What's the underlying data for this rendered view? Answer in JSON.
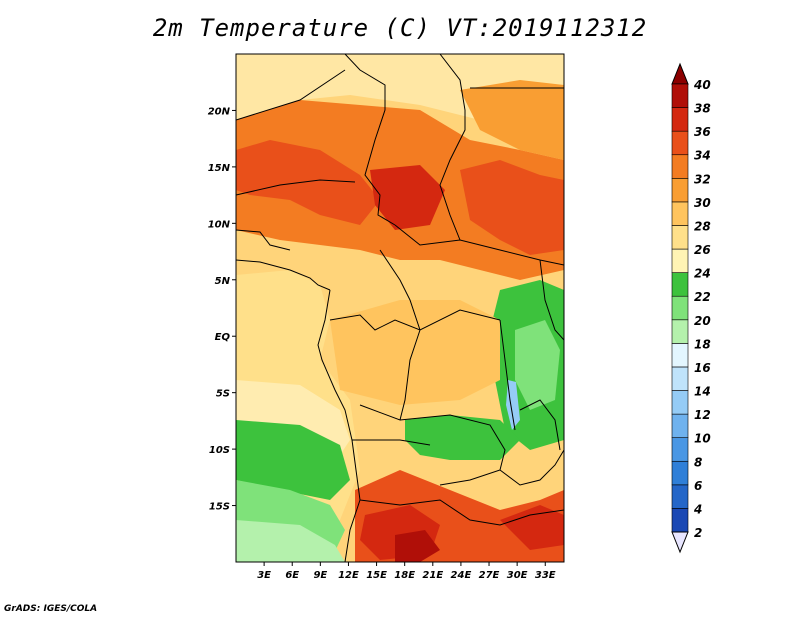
{
  "title": "2m Temperature (C) VT:2019112312",
  "credit": "GrADS: IGES/COLA",
  "map": {
    "lon_range": [
      0,
      35
    ],
    "lat_range": [
      -20,
      25
    ],
    "lat_ticks": [
      {
        "label": "20N",
        "lat": 20
      },
      {
        "label": "15N",
        "lat": 15
      },
      {
        "label": "10N",
        "lat": 10
      },
      {
        "label": "5N",
        "lat": 5
      },
      {
        "label": "EQ",
        "lat": 0
      },
      {
        "label": "5S",
        "lat": -5
      },
      {
        "label": "10S",
        "lat": -10
      },
      {
        "label": "15S",
        "lat": -15
      }
    ],
    "lon_ticks": [
      {
        "label": "3E",
        "lon": 3
      },
      {
        "label": "6E",
        "lon": 6
      },
      {
        "label": "9E",
        "lon": 9
      },
      {
        "label": "12E",
        "lon": 12
      },
      {
        "label": "15E",
        "lon": 15
      },
      {
        "label": "18E",
        "lon": 18
      },
      {
        "label": "21E",
        "lon": 21
      },
      {
        "label": "24E",
        "lon": 24
      },
      {
        "label": "27E",
        "lon": 27
      },
      {
        "label": "30E",
        "lon": 30
      },
      {
        "label": "33E",
        "lon": 33
      }
    ]
  },
  "colorbar": {
    "levels": [
      "2",
      "4",
      "6",
      "8",
      "10",
      "12",
      "14",
      "16",
      "18",
      "20",
      "22",
      "24",
      "26",
      "28",
      "30",
      "32",
      "34",
      "36",
      "38",
      "40"
    ],
    "colors": [
      "#0c1e78",
      "#1a48b4",
      "#2466c8",
      "#2f7fd8",
      "#4a97e4",
      "#6fb2ee",
      "#95ccf6",
      "#bfe3fb",
      "#e3f6ff",
      "#b4f1ac",
      "#7fe27a",
      "#3dc23d",
      "#fff4b4",
      "#ffe08a",
      "#ffc45e",
      "#f99e33",
      "#f37c22",
      "#e9501a",
      "#d42810",
      "#b00f08",
      "#8c0000"
    ],
    "under_color": "#e8e6ff",
    "over_color": "#8c0000"
  }
}
